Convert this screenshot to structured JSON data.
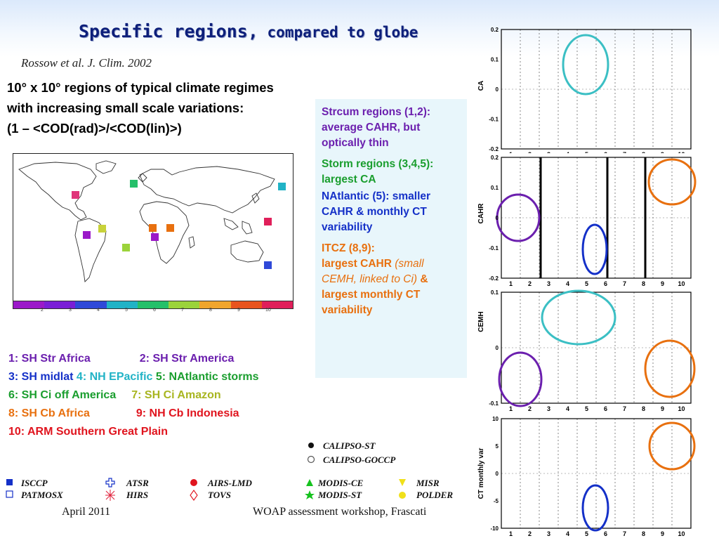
{
  "title": {
    "part1": "Specific regions,",
    "part2": " compared to globe"
  },
  "citation": "Rossow et al. J. Clim. 2002",
  "intro": {
    "line1": "10° x 10° regions of typical climate regimes",
    "line2": "with increasing small scale variations:",
    "line3": "(1 – <COD(rad)>/<COD(lin)>)"
  },
  "info": {
    "strcum_1": "Strcum regions (1,2):",
    "strcum_2": "average CAHR, but",
    "strcum_3": "optically thin",
    "storm_1": "Storm regions (3,4,5):",
    "storm_2": "largest CA",
    "natl_1": "NAtlantic (5): smaller",
    "natl_2": "CAHR & monthly CT",
    "natl_3": "variability",
    "itcz_1": "ITCZ (8,9):",
    "itcz_2": "largest CAHR",
    "itcz_3": "(small",
    "itcz_4": "CEMH, linked to Ci)",
    "itcz_5": "&",
    "itcz_6": "largest monthly CT",
    "itcz_7": "variability"
  },
  "colorbar_ticks": [
    "2",
    "3",
    "4",
    "5",
    "6",
    "7",
    "8",
    "9",
    "10"
  ],
  "colorbar_colors": [
    "#9b19c9",
    "#7a1fd6",
    "#2f49d8",
    "#21b3c6",
    "#25c06a",
    "#9bd33a",
    "#f0a52d",
    "#e8541e",
    "#e01f5a"
  ],
  "regions": {
    "r1": "1: SH Str Africa",
    "r2": "2: SH Str America",
    "r3": "3: SH midlat",
    "r4": "4: NH EPacific",
    "r5": "5: NAtlantic storms",
    "r6": "6: SH Ci off America",
    "r7": "7: SH Ci Amazon",
    "r8": "8: SH Cb Africa",
    "r9": "9: NH Cb Indonesia",
    "r10": "10: ARM Southern Great Plain"
  },
  "legend": {
    "isccp": "ISCCP",
    "patmosx": "PATMOSX",
    "atsr": "ATSR",
    "hirs": "HIRS",
    "airs": "AIRS-LMD",
    "tovs": "TOVS",
    "modisce": "MODIS-CE",
    "modisst": "MODIS-ST",
    "misr": "MISR",
    "polder": "POLDER",
    "calipsost": "CALIPSO-ST",
    "calipsogoccp": "CALIPSO-GOCCP"
  },
  "footer": {
    "date": "April 2011",
    "event": "WOAP assessment workshop, Frascati"
  },
  "panels": [
    {
      "ylabel": "CA",
      "yticks": [
        "0.2",
        "0.1",
        "0",
        "-0.1",
        "-0.2"
      ]
    },
    {
      "ylabel": "CAHR",
      "yticks": [
        "0.2",
        "0.1",
        "0",
        "-0.1",
        "-0.2"
      ]
    },
    {
      "ylabel": "CEMH",
      "yticks": [
        "0.1",
        "0",
        "-0.1"
      ]
    },
    {
      "ylabel": "CT monthly var",
      "yticks": [
        "10",
        "5",
        "0",
        "-5",
        "-10"
      ]
    }
  ],
  "xticks": [
    "1",
    "2",
    "3",
    "4",
    "5",
    "6",
    "7",
    "8",
    "9",
    "10"
  ],
  "colors": {
    "title": "#0d1f7a",
    "teal_circle": "#3bbfc4",
    "purple_circle": "#6b1fae",
    "blue_circle": "#1430c8",
    "orange_circle": "#e8700f",
    "info_bg": "#e8f6fb"
  }
}
